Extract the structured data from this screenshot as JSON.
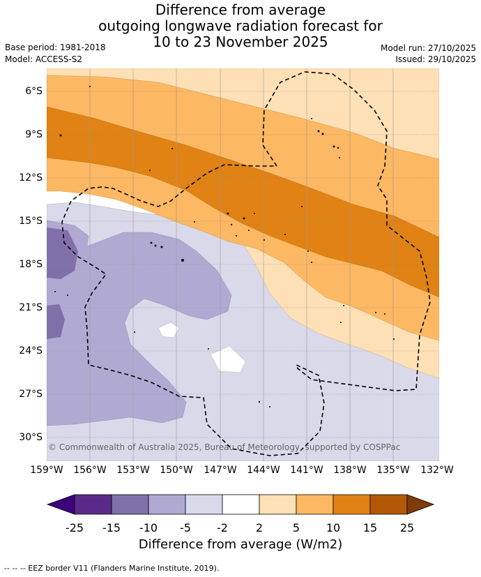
{
  "title": {
    "line1": "Difference from average",
    "line2": "outgoing longwave radiation forecast for",
    "line3": "10 to 23 November 2025"
  },
  "meta": {
    "base_period": "Base period: 1981-2018",
    "model": "Model: ACCESS-S2",
    "model_run": "Model run: 27/10/2025",
    "issued": "Issued: 29/10/2025"
  },
  "map": {
    "latitude_labels": [
      "6°S",
      "9°S",
      "12°S",
      "15°S",
      "18°S",
      "21°S",
      "24°S",
      "27°S",
      "30°S"
    ],
    "longitude_labels": [
      "159°W",
      "156°W",
      "153°W",
      "150°W",
      "147°W",
      "144°W",
      "141°W",
      "138°W",
      "135°W",
      "132°W"
    ],
    "copyright": "© Commonwealth of Australia 2025, Bureau of Meteorology, supported by COSPPac"
  },
  "colorbar": {
    "ticks": [
      "-25",
      "-15",
      "-10",
      "-5",
      "-2",
      "2",
      "5",
      "10",
      "15",
      "25"
    ],
    "colors": {
      "below_min": "#3f007d",
      "m25_m15": "#5a2a8a",
      "m15_m10": "#8070aa",
      "m10_m5": "#b0aad2",
      "m5_m2": "#d9d9ea",
      "m2_2": "#ffffff",
      "p2_5": "#fee0b6",
      "p5_10": "#fdb863",
      "p10_15": "#e08214",
      "p15_25": "#b35806",
      "above_max": "#7f3b08"
    },
    "label": "Difference from average (W/m2)"
  },
  "legend": {
    "eez": "--  --  -- EEZ border V11 (Flanders Marine Institute, 2019)."
  }
}
